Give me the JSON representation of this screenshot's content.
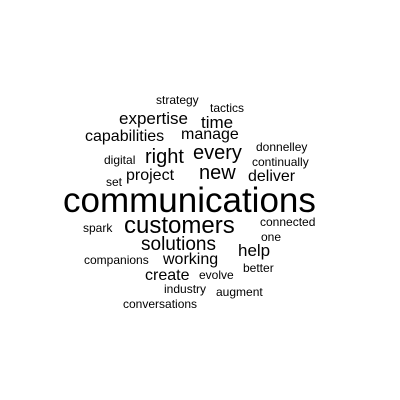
{
  "word_cloud": {
    "text_color": "#000000",
    "background": "#ffffff",
    "words": [
      "strategy",
      "tactics",
      "expertise",
      "time",
      "manage",
      "capabilities",
      "every",
      "right",
      "donnelley",
      "digital",
      "continually",
      "new",
      "project",
      "deliver",
      "set",
      "communications",
      "customers",
      "connected",
      "spark",
      "one",
      "solutions",
      "help",
      "working",
      "companions",
      "better",
      "create",
      "evolve",
      "industry",
      "augment",
      "conversations"
    ]
  }
}
